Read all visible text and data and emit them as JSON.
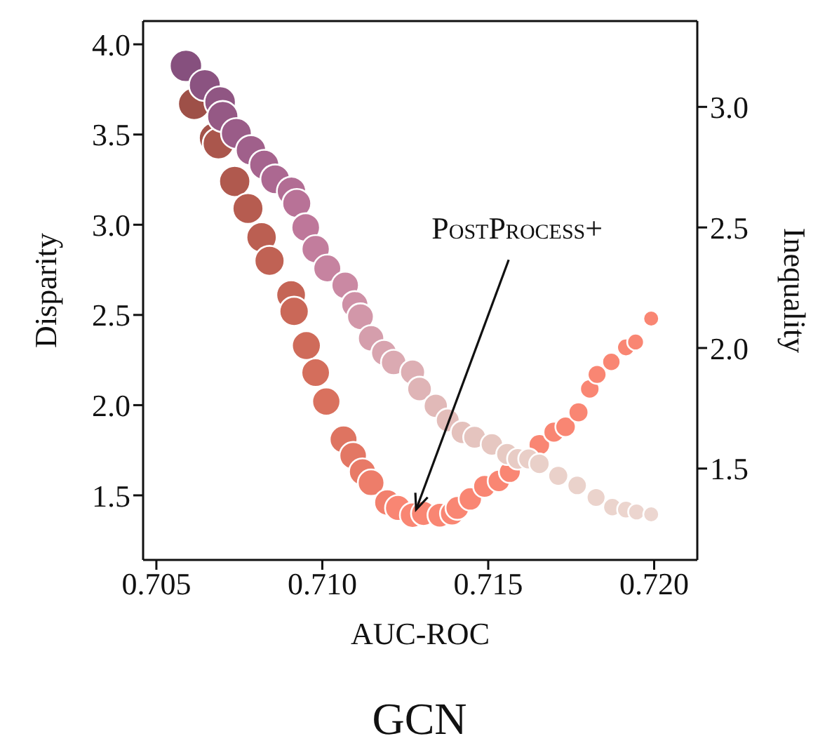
{
  "chart_data": {
    "type": "bubble",
    "title": "GCN",
    "xlabel": "AUC-ROC",
    "ylabel": "Disparity",
    "y2label": "Inequality",
    "xlim": [
      0.7046,
      0.7213
    ],
    "xticks": [
      0.705,
      {
        "value": 0.71,
        "label": "0.710"
      },
      0.715,
      {
        "value": 0.72,
        "label": "0.720"
      }
    ],
    "ylim": [
      1.142,
      4.129
    ],
    "yticks": [
      1.5,
      {
        "value": 2,
        "label": "2.0"
      },
      2.5,
      {
        "value": 3,
        "label": "3.0"
      },
      3.5,
      {
        "value": 4,
        "label": "4.0"
      }
    ],
    "y2lim": [
      1.121,
      3.356
    ],
    "y2ticks": [
      1.5,
      {
        "value": 2,
        "label": "2.0"
      },
      2.5,
      {
        "value": 3,
        "label": "3.0"
      }
    ],
    "annotations": [
      {
        "text": "PostProcess+",
        "x": 0.7127,
        "y": 1.39
      }
    ],
    "series": [
      {
        "x": [
          0.70614,
          0.70676,
          0.70687,
          0.70736,
          0.70776,
          0.70817,
          0.70841,
          0.70906,
          0.70915,
          0.70952,
          0.7098,
          0.71012,
          0.71064,
          0.71093,
          0.71121,
          0.71147,
          0.71196,
          0.71228,
          0.71272,
          0.71305,
          0.71354,
          0.71391,
          0.71407,
          0.71446,
          0.71489,
          0.71532,
          0.71565,
          0.71654,
          0.71698,
          0.71733,
          0.71772,
          0.71806,
          0.71828,
          0.71871,
          0.71915,
          0.71944,
          0.71991
        ],
        "values": [
          3.67,
          3.48,
          3.45,
          3.24,
          3.09,
          2.93,
          2.8,
          2.61,
          2.52,
          2.33,
          2.18,
          2.02,
          1.81,
          1.72,
          1.63,
          1.57,
          1.46,
          1.43,
          1.39,
          1.4,
          1.39,
          1.4,
          1.43,
          1.48,
          1.55,
          1.58,
          1.63,
          1.78,
          1.85,
          1.88,
          1.96,
          2.09,
          2.17,
          2.24,
          2.32,
          2.35,
          2.48
        ],
        "sizes": [
          1,
          0.97,
          0.95,
          0.93,
          0.91,
          0.88,
          0.86,
          0.84,
          0.82,
          0.8,
          0.78,
          0.76,
          0.74,
          0.72,
          0.7,
          0.68,
          0.66,
          0.64,
          0.62,
          0.6,
          0.58,
          0.56,
          0.54,
          0.52,
          0.5,
          0.48,
          0.46,
          0.44,
          0.42,
          0.4,
          0.38,
          0.36,
          0.34,
          0.32,
          0.3,
          0.27,
          0.24
        ],
        "colors": [
          "#9e5048",
          "#a4534a",
          "#aa564c",
          "#b0594e",
          "#b65c50",
          "#bb5f52",
          "#c06254",
          "#c56556",
          "#ca6858",
          "#cf6b5a",
          "#d46e5c",
          "#d9715e",
          "#de7461",
          "#e37764",
          "#e87a67",
          "#ed7d6a",
          "#f2806d",
          "#f98673",
          "#f98673",
          "#f98673",
          "#f98673",
          "#f98673",
          "#f98673",
          "#f98673",
          "#f98673",
          "#f98673",
          "#f98673",
          "#f98673",
          "#f98673",
          "#f98673",
          "#f98673",
          "#f98673",
          "#f98673",
          "#f98673",
          "#f98673",
          "#f98673",
          "#f98673"
        ]
      },
      {
        "axis": "y2",
        "x": [
          0.70589,
          0.70646,
          0.70692,
          0.707,
          0.70741,
          0.70785,
          0.70825,
          0.70858,
          0.70907,
          0.70923,
          0.7095,
          0.7098,
          0.71015,
          0.71069,
          0.71098,
          0.71115,
          0.71147,
          0.71186,
          0.71215,
          0.71272,
          0.71293,
          0.71342,
          0.71378,
          0.71422,
          0.71459,
          0.71511,
          0.71557,
          0.71589,
          0.71622,
          0.71654,
          0.71711,
          0.71768,
          0.71825,
          0.71874,
          0.71915,
          0.71947,
          0.71991
        ],
        "values": [
          3.17,
          3.09,
          3.02,
          2.96,
          2.89,
          2.82,
          2.76,
          2.7,
          2.65,
          2.6,
          2.5,
          2.41,
          2.33,
          2.26,
          2.18,
          2.13,
          2.04,
          1.98,
          1.94,
          1.9,
          1.83,
          1.76,
          1.7,
          1.65,
          1.63,
          1.6,
          1.56,
          1.54,
          1.54,
          1.52,
          1.47,
          1.43,
          1.38,
          1.34,
          1.33,
          1.32,
          1.31
        ],
        "sizes": [
          1,
          0.97,
          0.95,
          0.93,
          0.91,
          0.88,
          0.86,
          0.84,
          0.82,
          0.8,
          0.78,
          0.76,
          0.74,
          0.72,
          0.7,
          0.68,
          0.66,
          0.64,
          0.62,
          0.6,
          0.58,
          0.56,
          0.54,
          0.52,
          0.5,
          0.48,
          0.46,
          0.44,
          0.42,
          0.4,
          0.38,
          0.36,
          0.34,
          0.32,
          0.3,
          0.27,
          0.24
        ],
        "colors": [
          "#86507e",
          "#8b5381",
          "#905683",
          "#955985",
          "#9a5c88",
          "#a0608b",
          "#a6648e",
          "#ac6891",
          "#b26d94",
          "#b87297",
          "#be779a",
          "#c27d9d",
          "#c683a0",
          "#ca89a3",
          "#ce90a6",
          "#d297a9",
          "#d59eac",
          "#d8a4af",
          "#dbaab2",
          "#ddafb4",
          "#dfb4b6",
          "#e1b9b8",
          "#e3bdba",
          "#e4c1bc",
          "#e5c4bf",
          "#e6c7c1",
          "#e7cac3",
          "#e8ccc5",
          "#e9cec7",
          "#e9d0c9",
          "#ead1ca",
          "#ead2cb",
          "#ebd3cc",
          "#ebd4cd",
          "#ecd5ce",
          "#ecd5cf",
          "#ecd6d0"
        ]
      }
    ]
  }
}
